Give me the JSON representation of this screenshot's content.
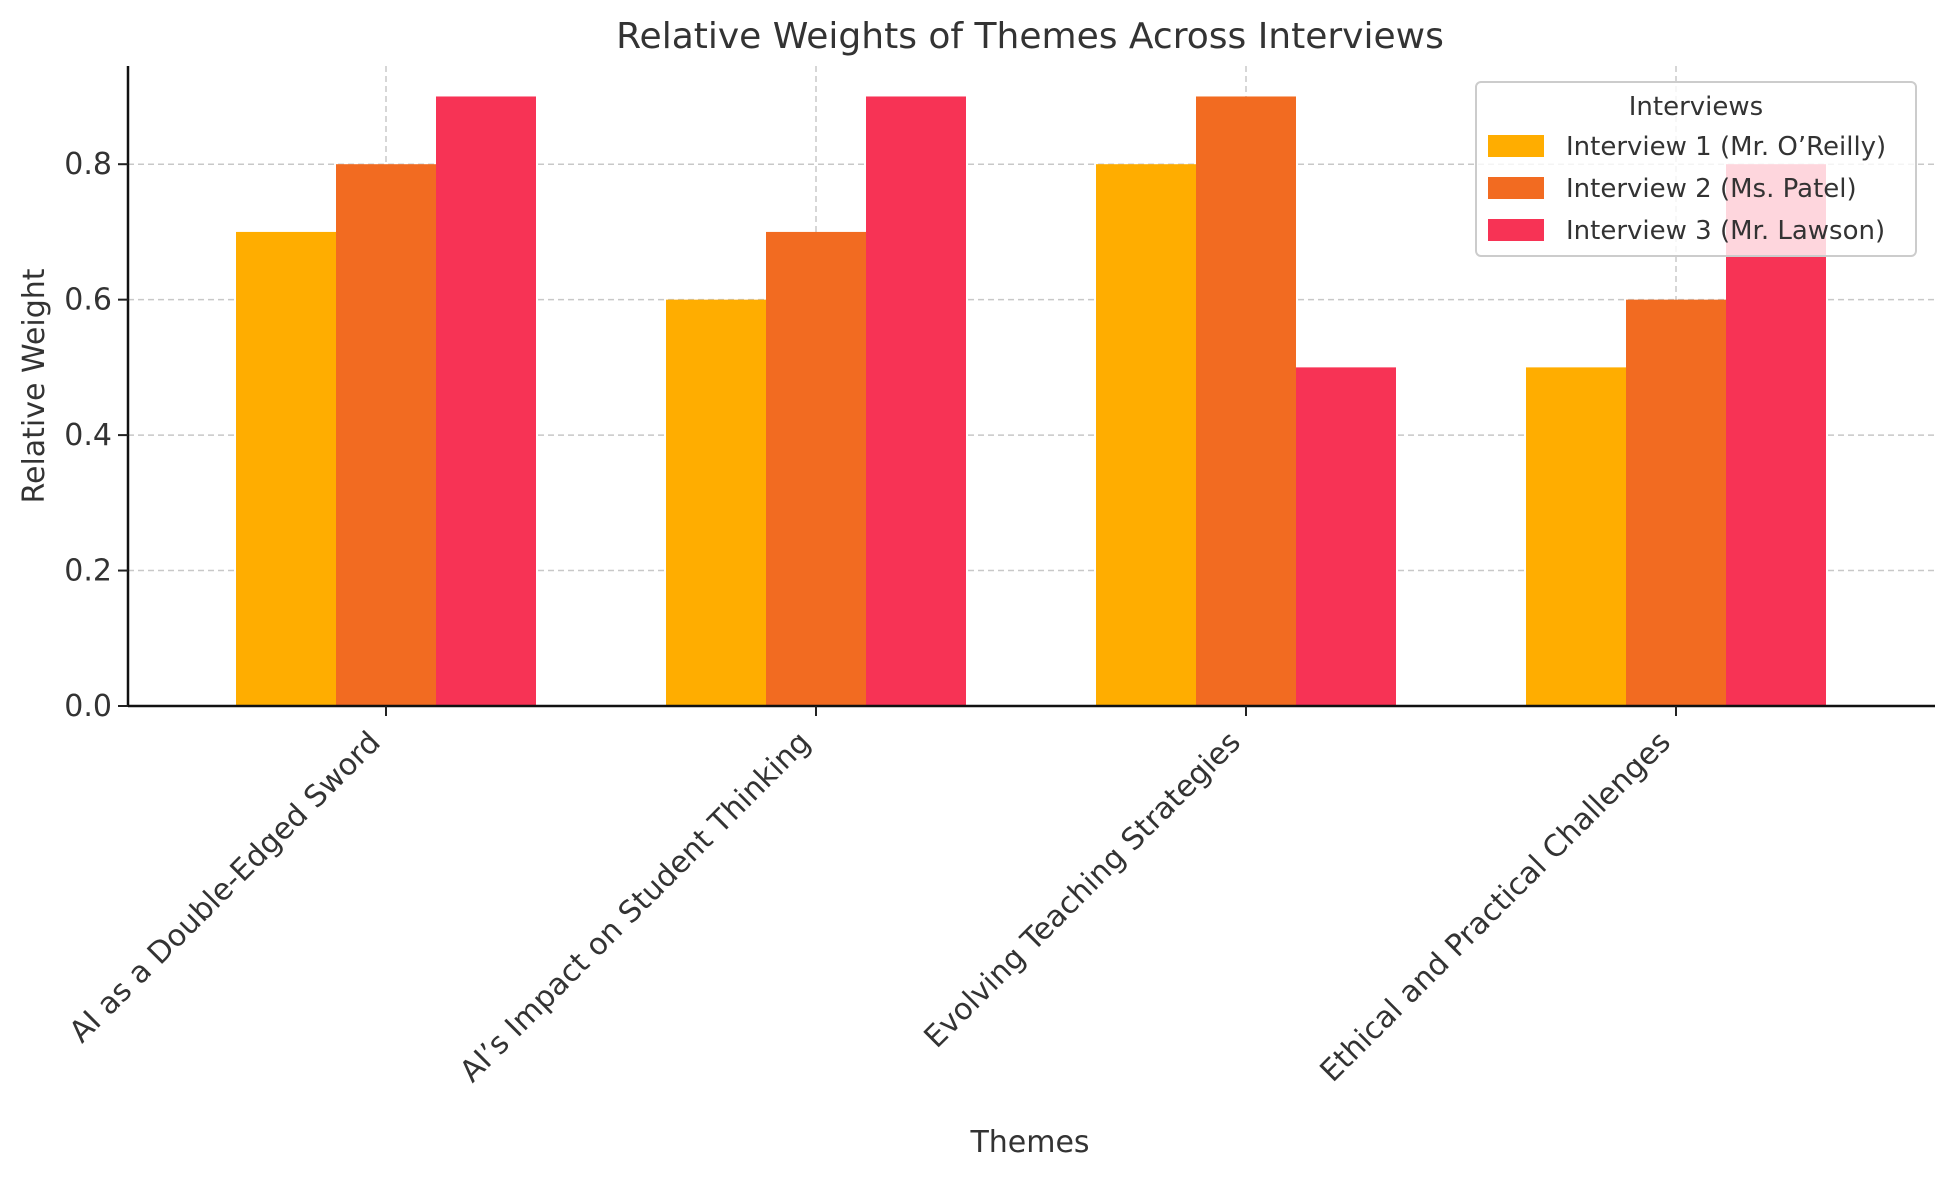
{
  "chart_data": {
    "type": "bar",
    "title": "Relative Weights of Themes Across Interviews",
    "xlabel": "Themes",
    "ylabel": "Relative Weight",
    "categories": [
      "AI as a Double-Edged Sword",
      "AI’s Impact on Student Thinking",
      "Evolving Teaching Strategies",
      "Ethical and Practical Challenges"
    ],
    "series": [
      {
        "name": "Interview 1 (Mr. O’Reilly)",
        "color": "#FFAD00",
        "values": [
          0.7,
          0.6,
          0.8,
          0.5
        ]
      },
      {
        "name": "Interview 2 (Ms. Patel)",
        "color": "#F26B21",
        "values": [
          0.8,
          0.7,
          0.9,
          0.6
        ]
      },
      {
        "name": "Interview 3 (Mr. Lawson)",
        "color": "#F73355",
        "values": [
          0.9,
          0.9,
          0.5,
          0.8
        ]
      }
    ],
    "ylim": [
      0,
      0.945
    ],
    "yticks": [
      "0.0",
      "0.2",
      "0.4",
      "0.6",
      "0.8"
    ],
    "grid": true,
    "legend": {
      "title": "Interviews",
      "placement": "top-right"
    }
  }
}
